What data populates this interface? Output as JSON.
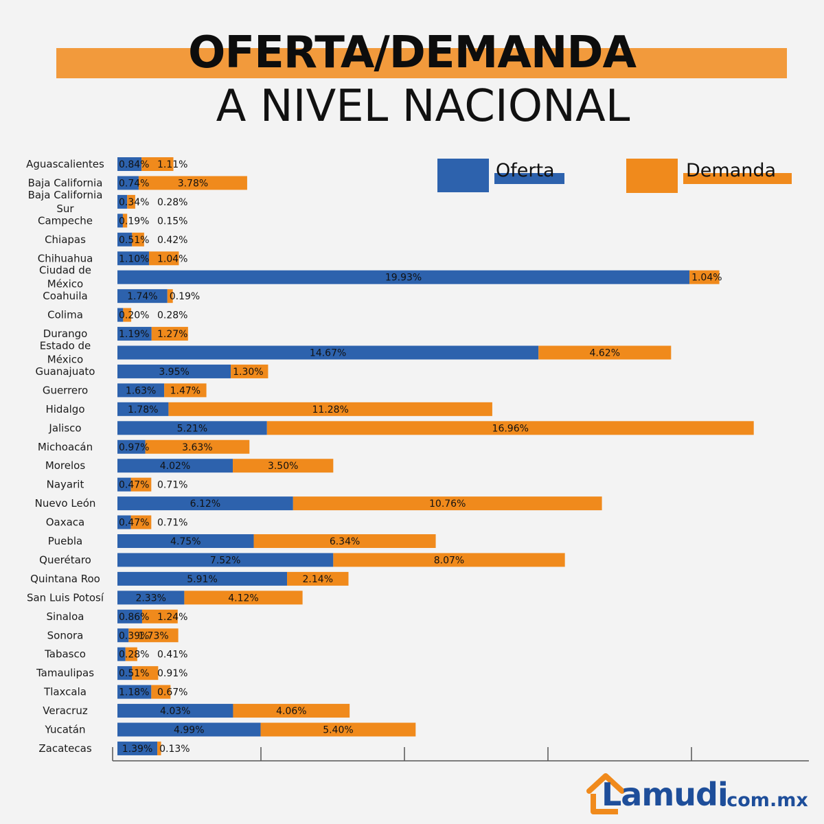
{
  "title": {
    "line1": "OFERTA/DEMANDA",
    "line2": "A NIVEL NACIONAL"
  },
  "colors": {
    "oferta": "#2d62ad",
    "demanda": "#f08a1c",
    "title_band": "#f29a3c",
    "background": "#f3f3f3",
    "brand": "#1e4e9a"
  },
  "legend": {
    "oferta_label": "Oferta",
    "demanda_label": "Demanda",
    "placement": "top-right"
  },
  "brand": {
    "logo_text": "Lamudi",
    "domain": ".com.mx"
  },
  "chart_data": {
    "type": "bar",
    "orientation": "horizontal",
    "stacked": true,
    "title": "",
    "xlabel": "",
    "ylabel": "",
    "xlim": [
      0,
      24
    ],
    "grid": false,
    "categories": [
      "Aguascalientes",
      "Baja California",
      "Baja California Sur",
      "Campeche",
      "Chiapas",
      "Chihuahua",
      "Ciudad de México",
      "Coahuila",
      "Colima",
      "Durango",
      "Estado de México",
      "Guanajuato",
      "Guerrero",
      "Hidalgo",
      "Jalisco",
      "Michoacán",
      "Morelos",
      "Nayarit",
      "Nuevo León",
      "Oaxaca",
      "Puebla",
      "Querétaro",
      "Quintana Roo",
      "San Luis Potosí",
      "Sinaloa",
      "Sonora",
      "Tabasco",
      "Tamaulipas",
      "Tlaxcala",
      "Veracruz",
      "Yucatán",
      "Zacatecas"
    ],
    "series": [
      {
        "name": "Oferta",
        "values": [
          0.84,
          0.74,
          0.34,
          0.19,
          0.51,
          1.1,
          19.93,
          1.74,
          0.2,
          1.19,
          14.67,
          3.95,
          1.63,
          1.78,
          5.21,
          0.97,
          4.02,
          0.47,
          6.12,
          0.47,
          4.75,
          7.52,
          5.91,
          2.33,
          0.86,
          0.39,
          0.28,
          0.51,
          1.18,
          4.03,
          4.99,
          1.39
        ],
        "labels": [
          "0.84%",
          "0.74%",
          "0.34%",
          "0.19%",
          "0.51%",
          "1.10%",
          "19.93%",
          "1.74%",
          "0.20%",
          "1.19%",
          "14.67%",
          "3.95%",
          "1.63%",
          "1.78%",
          "5.21%",
          "0.97%",
          "4.02%",
          "0.47%",
          "6.12%",
          "0.47%",
          "4.75%",
          "7.52%",
          "5.91%",
          "2.33%",
          "0.86%",
          "0.39%",
          "0.28%",
          "0.51%",
          "1.18%",
          "4.03%",
          "4.99%",
          "1.39%"
        ]
      },
      {
        "name": "Demanda",
        "values": [
          1.11,
          3.78,
          0.28,
          0.15,
          0.42,
          1.04,
          1.04,
          0.19,
          0.28,
          1.27,
          4.62,
          1.3,
          1.47,
          11.28,
          16.96,
          3.63,
          3.5,
          0.71,
          10.76,
          0.71,
          6.34,
          8.07,
          2.14,
          4.12,
          1.24,
          1.73,
          0.41,
          0.91,
          0.67,
          4.06,
          5.4,
          0.13
        ],
        "labels": [
          "1.11%",
          "3.78%",
          "0.28%",
          "0.15%",
          "0.42%",
          "1.04%",
          "1.04%",
          "0.19%",
          "0.28%",
          "1.27%",
          "4.62%",
          "1.30%",
          "1.47%",
          "11.28%",
          "16.96%",
          "3.63%",
          "3.50%",
          "0.71%",
          "10.76%",
          "0.71%",
          "6.34%",
          "8.07%",
          "2.14%",
          "4.12%",
          "1.24%",
          "1.73%",
          "0.41%",
          "0.91%",
          "0.67%",
          "4.06%",
          "5.40%",
          "0.13%"
        ]
      }
    ]
  }
}
